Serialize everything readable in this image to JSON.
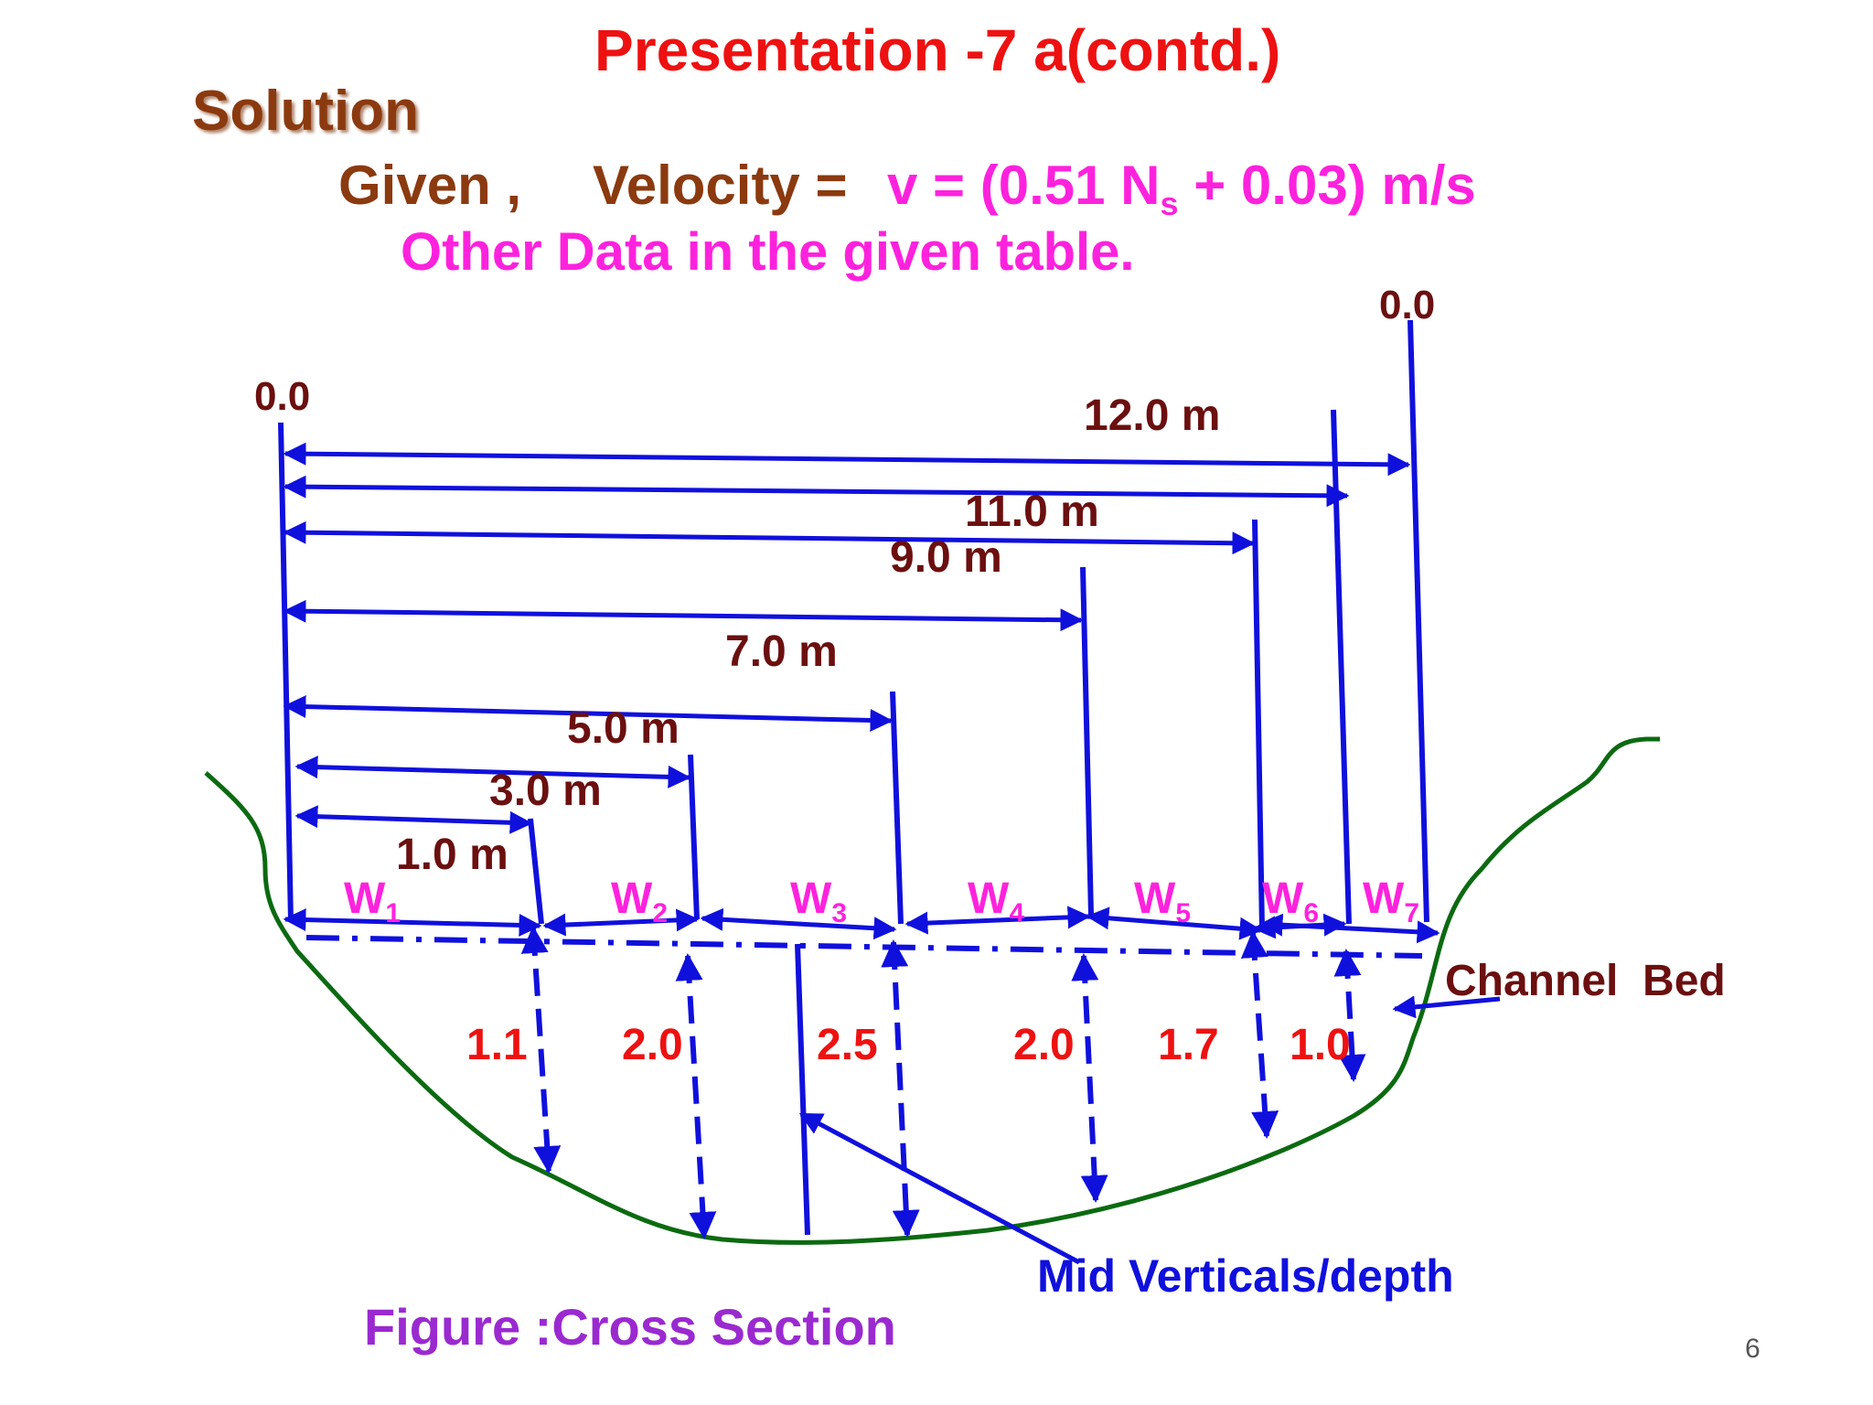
{
  "title": "Presentation -7 a(contd.)",
  "solution": "Solution",
  "given_label": "Given ,",
  "velocity_label": "Velocity =",
  "formula": {
    "pre": "v = (0.51 N",
    "sub": "s",
    "post": " + 0.03) m/s"
  },
  "other_data": "Other Data in the given table.",
  "diagram": {
    "origin_left": "0.0",
    "origin_right": "0.0",
    "distances": [
      "1.0 m",
      "3.0 m",
      "5.0 m",
      "7.0 m",
      "9.0 m",
      "11.0 m",
      "12.0 m"
    ],
    "widths": [
      {
        "main": "W",
        "sub": "1"
      },
      {
        "main": "W",
        "sub": "2"
      },
      {
        "main": "W",
        "sub": "3"
      },
      {
        "main": "W",
        "sub": "4"
      },
      {
        "main": "W",
        "sub": "5"
      },
      {
        "main": "W",
        "sub": "6"
      },
      {
        "main": "W",
        "sub": "7"
      }
    ],
    "depths": [
      "1.1",
      "2.0",
      "2.5",
      "2.0",
      "1.7",
      "1.0"
    ],
    "channel_bed_label": "Channel  Bed",
    "mid_verticals_label": "Mid Verticals/depth",
    "figure_caption": "Figure :Cross Section"
  },
  "page_number": "6",
  "colors": {
    "title": "#ee1111",
    "brown": "#8b3a0f",
    "magenta": "#ff22dd",
    "blue": "#1010dd",
    "dark_red": "#6b0f0f",
    "red": "#ee1111",
    "green": "#0b6a10",
    "purple": "#9a2ad0"
  }
}
